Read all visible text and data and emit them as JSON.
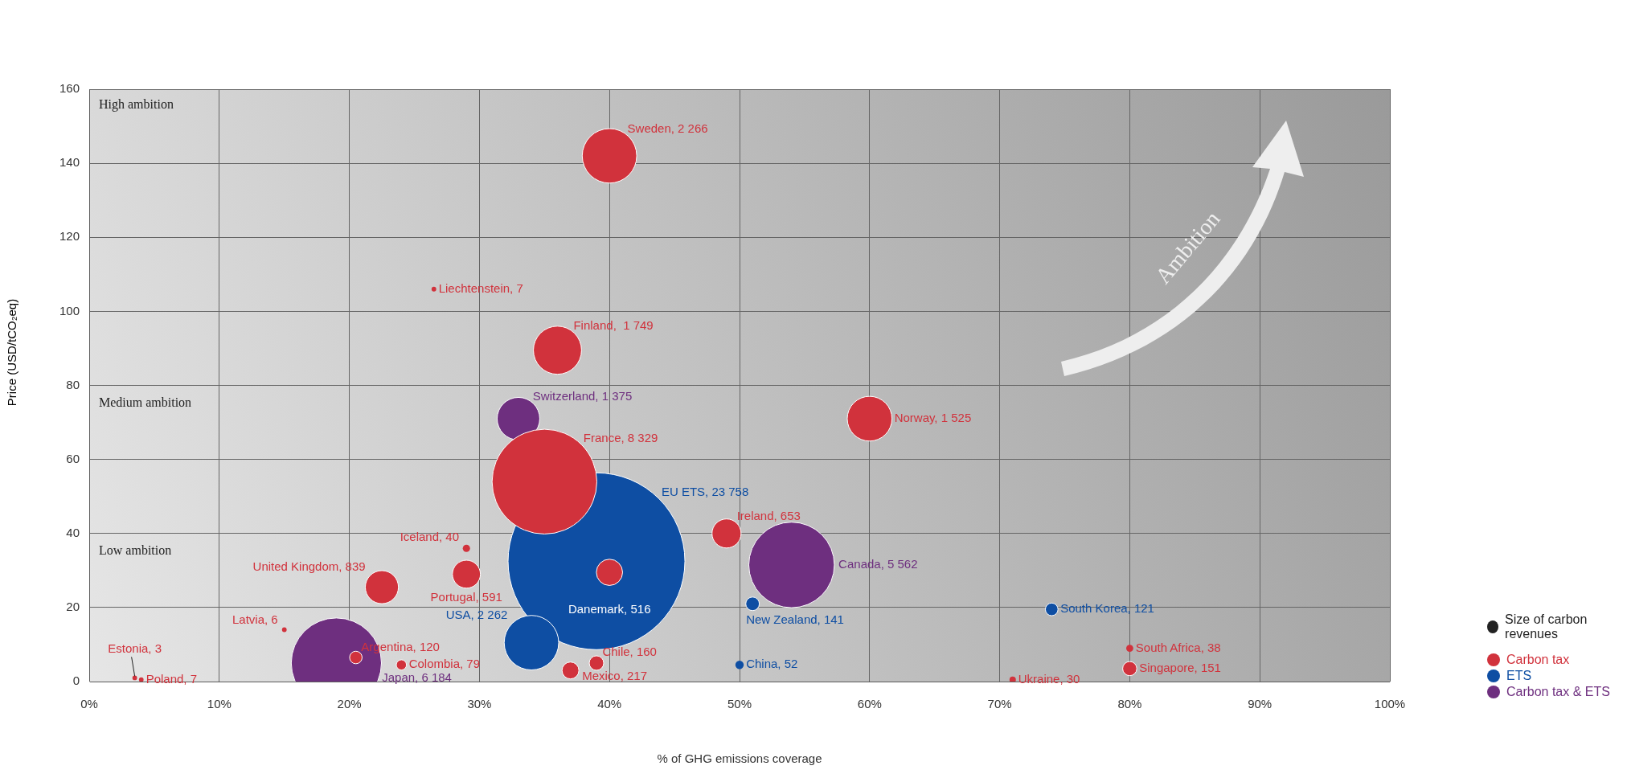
{
  "chart_data": {
    "type": "bubble",
    "xlabel": "% of GHG emissions coverage",
    "ylabel": "Price (USD/tCO₂eq)",
    "legend_title": "Size of carbon revenues",
    "legend": "right",
    "grid": true,
    "xlim": [
      0,
      100
    ],
    "xticks": [
      {
        "value": 0,
        "label": "0%"
      },
      {
        "value": 10,
        "label": "10%"
      },
      {
        "value": 20,
        "label": "20%"
      },
      {
        "value": 30,
        "label": "30%"
      },
      {
        "value": 40,
        "label": "40%"
      },
      {
        "value": 50,
        "label": "50%"
      },
      {
        "value": 60,
        "label": "60%"
      },
      {
        "value": 70,
        "label": "70%"
      },
      {
        "value": 80,
        "label": "80%"
      },
      {
        "value": 90,
        "label": "90%"
      },
      {
        "value": 100,
        "label": "100%"
      }
    ],
    "ylim": [
      0,
      160
    ],
    "yticks": [
      0,
      20,
      40,
      60,
      80,
      100,
      120,
      140,
      160
    ],
    "annotations": [
      "High ambition",
      "Medium ambition",
      "Low ambition",
      "Ambition",
      {
        "text": "Sweden, 2 266",
        "x": 40,
        "y": 142
      },
      {
        "text": "Liechtenstein, 7",
        "x": 26.5,
        "y": 106
      },
      {
        "text": "Finland,  1 749",
        "x": 36,
        "y": 89.5
      },
      {
        "text": "Norway, 1 525",
        "x": 60,
        "y": 71
      },
      {
        "text": "France, 8 329",
        "x": 37.8,
        "y": 64
      },
      {
        "text": "Ireland, 653",
        "x": 49,
        "y": 40
      },
      {
        "text": "Iceland, 40",
        "x": 29,
        "y": 36
      },
      {
        "text": "United Kingdom, 839",
        "x": 22.5,
        "y": 25.5
      },
      {
        "text": "Portugal, 591",
        "x": 29,
        "y": 29
      },
      {
        "text": "Danemark, 516",
        "x": 40,
        "y": 29.5
      },
      {
        "text": "Latvia, 6",
        "x": 15,
        "y": 14
      },
      {
        "text": "Argentina, 120",
        "x": 20.5,
        "y": 6.5
      },
      {
        "text": "Colombia, 79",
        "x": 24,
        "y": 4.5
      },
      {
        "text": "Chile, 160",
        "x": 39,
        "y": 5
      },
      {
        "text": "Mexico, 217",
        "x": 37,
        "y": 3
      },
      {
        "text": "Estonia, 3",
        "x": 3.5,
        "y": 1
      },
      {
        "text": "Poland, 7",
        "x": 4,
        "y": 0.5
      },
      {
        "text": "Ukraine, 30",
        "x": 71,
        "y": 0.5
      },
      {
        "text": "South Africa, 38",
        "x": 80,
        "y": 9
      },
      {
        "text": "Singapore, 151",
        "x": 80,
        "y": 3.5
      },
      {
        "text": "EU ETS, 23 758",
        "x": 43.8,
        "y": 49.5
      },
      {
        "text": "USA, 2 262",
        "x": 34,
        "y": 10.5
      },
      {
        "text": "New Zealand, 141",
        "x": 51,
        "y": 21
      },
      {
        "text": "South Korea, 121",
        "x": 74,
        "y": 19.5
      },
      {
        "text": "China, 52",
        "x": 50,
        "y": 4.5
      },
      {
        "text": "Switzerland, 1 375",
        "x": 33,
        "y": 71
      },
      {
        "text": "Canada, 5 562",
        "x": 57.3,
        "y": 31.5
      },
      {
        "text": "Japan, 6 184",
        "x": 22.2,
        "y": 1
      }
    ],
    "series": [
      {
        "name": "Carbon tax",
        "color": "#d1323c",
        "x": [
          40,
          26.5,
          36,
          60,
          35,
          49,
          29,
          22.5,
          29,
          40,
          15,
          20.5,
          24,
          39,
          37,
          3.5,
          4,
          71,
          80,
          80
        ],
        "values": [
          142,
          106,
          89.5,
          71,
          54,
          40,
          36,
          25.5,
          29,
          29.5,
          14,
          6.5,
          4.5,
          5,
          3,
          1,
          0.5,
          0.5,
          9,
          3.5
        ],
        "sizes": [
          0.095,
          0.0007,
          0.074,
          0.064,
          0.351,
          0.027,
          0.0017,
          0.035,
          0.025,
          0.022,
          0.0007,
          0.005,
          0.0033,
          0.0067,
          0.0091,
          0.0007,
          0.0007,
          0.0013,
          0.0016,
          0.0064
        ]
      },
      {
        "name": "ETS",
        "color": "#0e4ea3",
        "x": [
          39,
          34,
          51,
          74,
          50
        ],
        "values": [
          32.5,
          10.5,
          21,
          19.5,
          4.5
        ],
        "sizes": [
          1,
          0.095,
          0.0059,
          0.0051,
          0.0022
        ]
      },
      {
        "name": "Carbon tax & ETS",
        "color": "#6e2f7f",
        "x": [
          33,
          54,
          19
        ],
        "values": [
          71,
          31.5,
          5
        ],
        "sizes": [
          0.058,
          0.234,
          0.26
        ]
      }
    ]
  }
}
